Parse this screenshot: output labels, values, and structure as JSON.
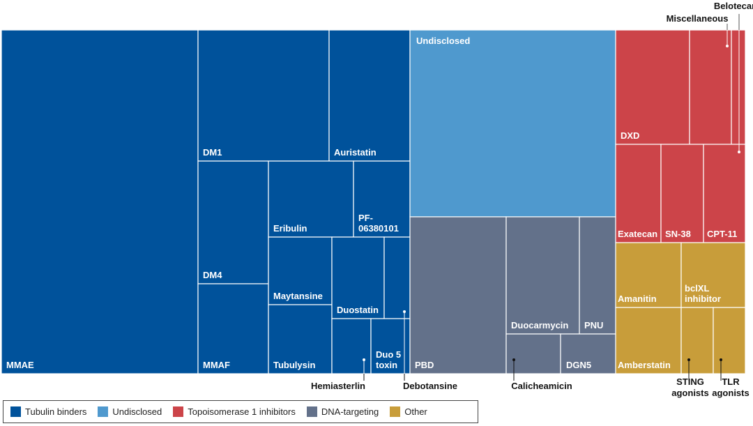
{
  "chart_data": {
    "type": "treemap",
    "categories": {
      "tubulin": {
        "label": "Tubulin binders",
        "color": "#00529b"
      },
      "undisclosed": {
        "label": "Undisclosed",
        "color": "#4f99ce"
      },
      "topo": {
        "label": "Topoisomerase 1 inhibitors",
        "color": "#cc4449"
      },
      "dna": {
        "label": "DNA-targeting",
        "color": "#63718a"
      },
      "other": {
        "label": "Other",
        "color": "#c89d3a"
      }
    },
    "legend_order": [
      "tubulin",
      "undisclosed",
      "topo",
      "dna",
      "other"
    ],
    "tiles": [
      {
        "id": "mmae",
        "name": "MMAE",
        "group": "tubulin"
      },
      {
        "id": "dm1",
        "name": "DM1",
        "group": "tubulin"
      },
      {
        "id": "auristatin",
        "name": "Auristatin",
        "group": "tubulin"
      },
      {
        "id": "dm4",
        "name": "DM4",
        "group": "tubulin"
      },
      {
        "id": "mmaf",
        "name": "MMAF",
        "group": "tubulin"
      },
      {
        "id": "eribulin",
        "name": "Eribulin",
        "group": "tubulin"
      },
      {
        "id": "pf",
        "name": [
          "PF-",
          "06380101"
        ],
        "group": "tubulin"
      },
      {
        "id": "maytansine",
        "name": "Maytansine",
        "group": "tubulin"
      },
      {
        "id": "tubulysin",
        "name": "Tubulysin",
        "group": "tubulin"
      },
      {
        "id": "duostatin",
        "name": "Duostatin",
        "group": "tubulin"
      },
      {
        "id": "debotansine",
        "name": "Debotansine",
        "group": "tubulin"
      },
      {
        "id": "hemiasterlin",
        "name": "Hemiasterlin",
        "group": "tubulin"
      },
      {
        "id": "duo5",
        "name": [
          "Duo 5",
          "toxin"
        ],
        "group": "tubulin"
      },
      {
        "id": "undisclosed",
        "name": "Undisclosed",
        "group": "undisclosed"
      },
      {
        "id": "pbd",
        "name": "PBD",
        "group": "dna"
      },
      {
        "id": "duocarmycin",
        "name": "Duocarmycin",
        "group": "dna"
      },
      {
        "id": "pnu",
        "name": "PNU",
        "group": "dna"
      },
      {
        "id": "calicheamicin",
        "name": "Calicheamicin",
        "group": "dna"
      },
      {
        "id": "dgn5",
        "name": "DGN5",
        "group": "dna"
      },
      {
        "id": "dxd",
        "name": "DXD",
        "group": "topo"
      },
      {
        "id": "belotecan",
        "name": "Belotecan",
        "group": "topo"
      },
      {
        "id": "miscellaneous",
        "name": "Miscellaneous",
        "group": "topo"
      },
      {
        "id": "exatecan",
        "name": "Exatecan",
        "group": "topo"
      },
      {
        "id": "sn38",
        "name": "SN-38",
        "group": "topo"
      },
      {
        "id": "cpt11",
        "name": "CPT-11",
        "group": "topo"
      },
      {
        "id": "amanitin",
        "name": "Amanitin",
        "group": "other"
      },
      {
        "id": "bclxl",
        "name": [
          "bclXL",
          "inhibitor"
        ],
        "group": "other"
      },
      {
        "id": "amberstatin",
        "name": "Amberstatin",
        "group": "other"
      },
      {
        "id": "sting",
        "name": [
          "STING",
          "agonists"
        ],
        "group": "other"
      },
      {
        "id": "tlr",
        "name": [
          "TLR",
          "agonists"
        ],
        "group": "other"
      }
    ]
  }
}
